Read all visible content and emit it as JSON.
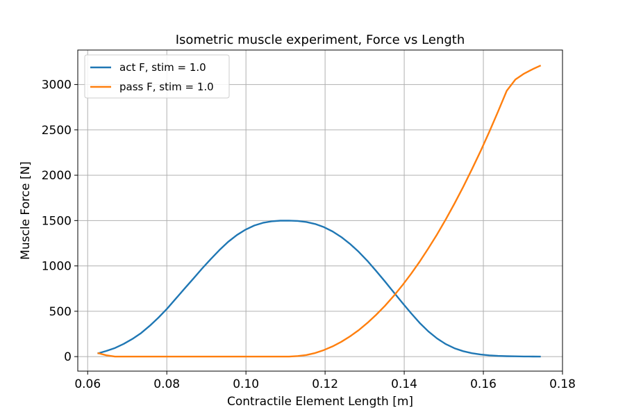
{
  "chart_data": {
    "type": "line",
    "title": "Isometric muscle experiment, Force vs Length",
    "xlabel": "Contractile Element Length [m]",
    "ylabel": "Muscle Force [N]",
    "xlim": [
      0.0575,
      0.18
    ],
    "ylim": [
      -160,
      3380
    ],
    "xticks": [
      0.06,
      0.08,
      0.1,
      0.12,
      0.14,
      0.16,
      0.18
    ],
    "xtick_labels": [
      "0.06",
      "0.08",
      "0.10",
      "0.12",
      "0.14",
      "0.16",
      "0.18"
    ],
    "yticks": [
      0,
      500,
      1000,
      1500,
      2000,
      2500,
      3000
    ],
    "ytick_labels": [
      "0",
      "500",
      "1000",
      "1500",
      "2000",
      "2500",
      "3000"
    ],
    "grid": true,
    "legend_position": "top-left",
    "series": [
      {
        "name": "act F, stim = 1.0",
        "color": "#1f77b4",
        "x": [
          0.0625,
          0.0647,
          0.0669,
          0.0691,
          0.0713,
          0.0735,
          0.0757,
          0.0779,
          0.0801,
          0.0823,
          0.0845,
          0.0867,
          0.0889,
          0.0911,
          0.0933,
          0.0955,
          0.0977,
          0.0999,
          0.1021,
          0.1043,
          0.1065,
          0.1087,
          0.1109,
          0.1131,
          0.1153,
          0.1175,
          0.1197,
          0.1219,
          0.1241,
          0.1263,
          0.1285,
          0.1307,
          0.1329,
          0.1351,
          0.1373,
          0.1395,
          0.1417,
          0.1439,
          0.1461,
          0.1483,
          0.1505,
          0.1527,
          0.1549,
          0.1571,
          0.1593,
          0.1615,
          0.1637,
          0.1659,
          0.1681,
          0.1703,
          0.1725,
          0.1745
        ],
        "y": [
          35,
          62,
          95,
          140,
          195,
          260,
          340,
          430,
          530,
          640,
          750,
          860,
          970,
          1075,
          1175,
          1265,
          1340,
          1400,
          1445,
          1475,
          1492,
          1499,
          1500,
          1496,
          1484,
          1462,
          1428,
          1380,
          1318,
          1243,
          1155,
          1055,
          945,
          830,
          712,
          595,
          480,
          372,
          278,
          200,
          138,
          92,
          60,
          38,
          23,
          14,
          8,
          5,
          3,
          2,
          1,
          0
        ]
      },
      {
        "name": "pass F, stim = 1.0",
        "color": "#ff7f0e",
        "x": [
          0.0625,
          0.0647,
          0.0669,
          0.0691,
          0.0713,
          0.0735,
          0.0757,
          0.0779,
          0.0801,
          0.0823,
          0.0845,
          0.0867,
          0.0889,
          0.0911,
          0.0933,
          0.0955,
          0.0977,
          0.0999,
          0.1021,
          0.1043,
          0.1065,
          0.1087,
          0.1109,
          0.1131,
          0.1153,
          0.1175,
          0.1197,
          0.1219,
          0.1241,
          0.1263,
          0.1285,
          0.1307,
          0.1329,
          0.1351,
          0.1373,
          0.1395,
          0.1417,
          0.1439,
          0.1461,
          0.1483,
          0.1505,
          0.1527,
          0.1549,
          0.1571,
          0.1593,
          0.1615,
          0.1637,
          0.1659,
          0.1681,
          0.1703,
          0.1725,
          0.1745
        ],
        "y": [
          40,
          15,
          0,
          0,
          0,
          0,
          0,
          0,
          0,
          0,
          0,
          0,
          0,
          0,
          0,
          0,
          0,
          0,
          0,
          0,
          0,
          0,
          0,
          6,
          18,
          40,
          72,
          113,
          163,
          223,
          292,
          372,
          461,
          559,
          667,
          784,
          911,
          1047,
          1193,
          1348,
          1513,
          1687,
          1871,
          2064,
          2267,
          2479,
          2700,
          2931,
          3055,
          3120,
          3170,
          3210
        ]
      }
    ]
  }
}
